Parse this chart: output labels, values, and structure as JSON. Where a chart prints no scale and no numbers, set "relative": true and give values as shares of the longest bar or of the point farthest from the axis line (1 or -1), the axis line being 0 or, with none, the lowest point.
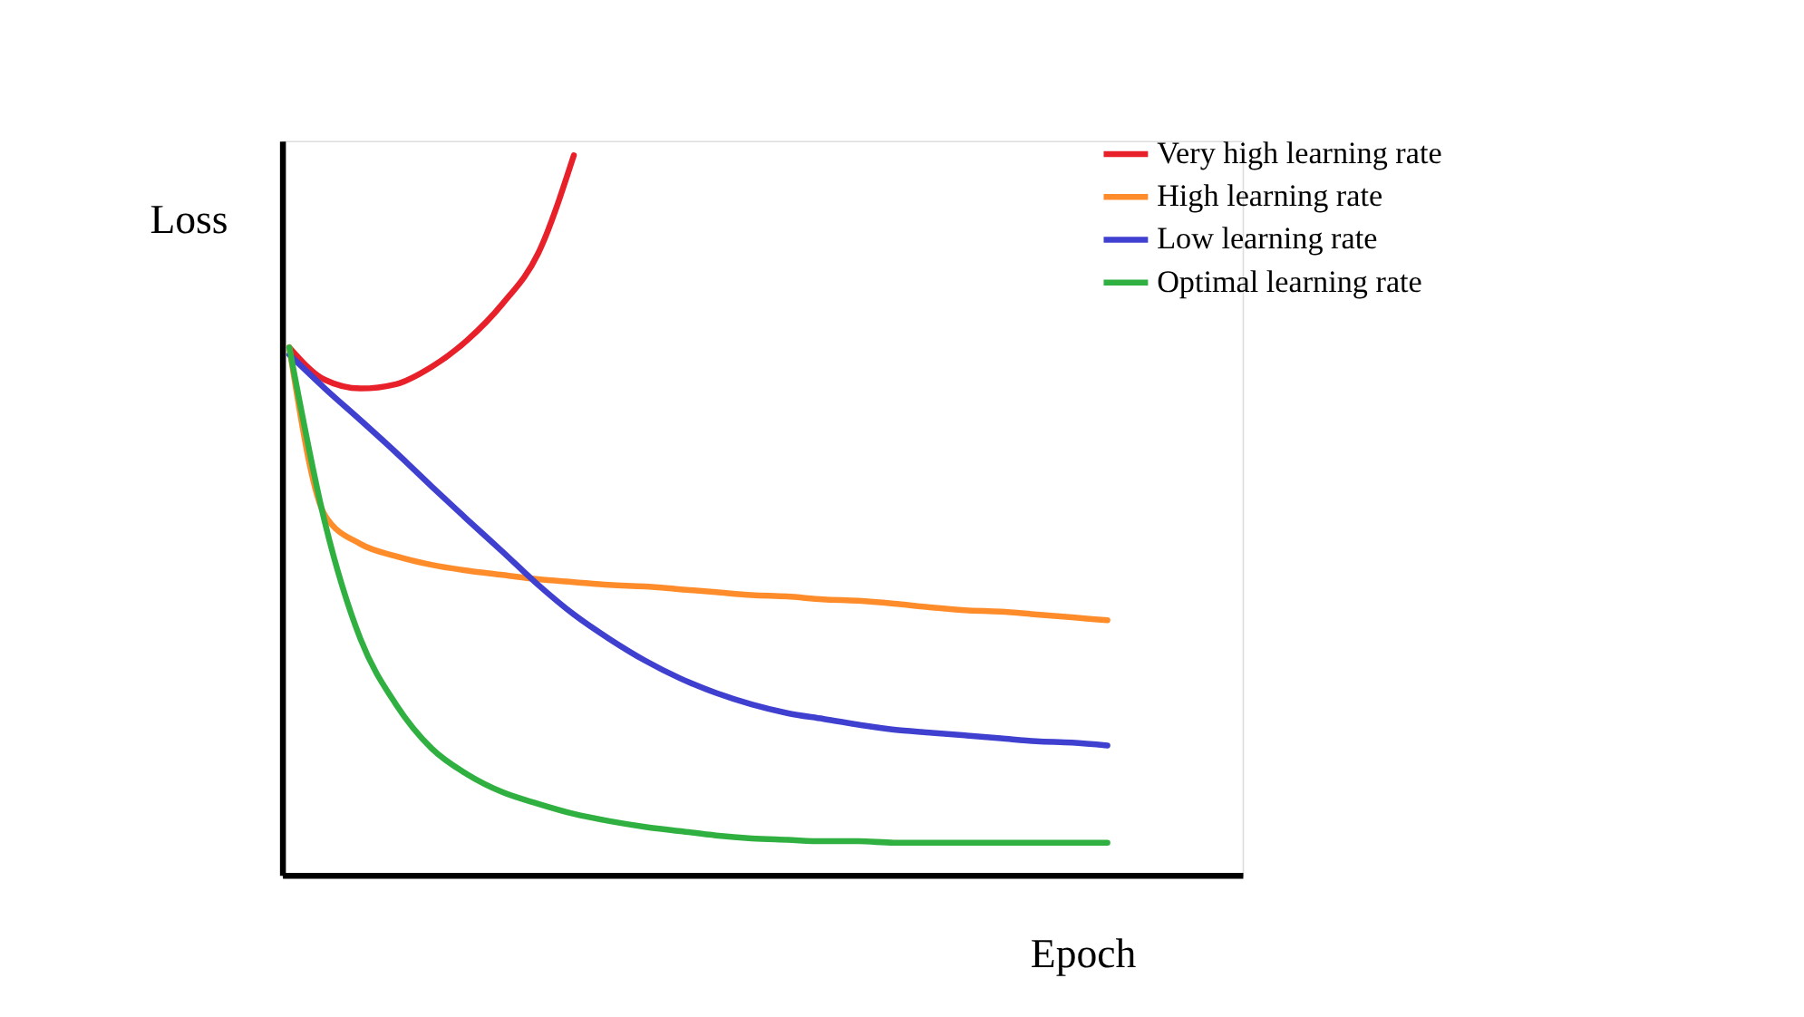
{
  "chart_data": {
    "type": "line",
    "relative": true,
    "xlabel": "Epoch",
    "ylabel": "Loss",
    "grid": false,
    "legend": "top right",
    "tick_labels": false,
    "marker": "none",
    "line_style": "solid",
    "categories": [
      null,
      null,
      null,
      null,
      null,
      null,
      null,
      null,
      null,
      null,
      null,
      null,
      null,
      null,
      null,
      null,
      null,
      null,
      null,
      null,
      null,
      null,
      null,
      null
    ],
    "series": [
      {
        "name": "Very high learning rate",
        "color": "#e8202a",
        "values": [
          0.733,
          0.688,
          0.676,
          0.682,
          0.706,
          0.743,
          0.794,
          0.864,
          1.0,
          null,
          null,
          null,
          null,
          null,
          null,
          null,
          null,
          null,
          null,
          null,
          null,
          null,
          null,
          null
        ]
      },
      {
        "name": "High learning rate",
        "color": "#ff8c2a",
        "values": [
          0.733,
          0.5,
          0.46,
          0.443,
          0.431,
          0.423,
          0.417,
          0.411,
          0.407,
          0.403,
          0.401,
          0.397,
          0.393,
          0.389,
          0.387,
          0.383,
          0.381,
          0.377,
          0.372,
          0.368,
          0.366,
          0.362,
          0.358,
          0.354
        ]
      },
      {
        "name": "Low learning rate",
        "color": "#4040d0",
        "values": [
          0.723,
          0.676,
          0.632,
          0.587,
          0.54,
          0.494,
          0.449,
          0.403,
          0.362,
          0.328,
          0.298,
          0.273,
          0.253,
          0.237,
          0.225,
          0.217,
          0.209,
          0.202,
          0.198,
          0.194,
          0.19,
          0.186,
          0.184,
          0.18
        ]
      },
      {
        "name": "Optimal learning rate",
        "color": "#30b040",
        "values": [
          0.733,
          0.49,
          0.328,
          0.237,
          0.176,
          0.14,
          0.115,
          0.099,
          0.085,
          0.075,
          0.067,
          0.061,
          0.055,
          0.051,
          0.049,
          0.047,
          0.047,
          0.045,
          0.045,
          0.045,
          0.045,
          0.045,
          0.045,
          0.045
        ]
      }
    ]
  }
}
